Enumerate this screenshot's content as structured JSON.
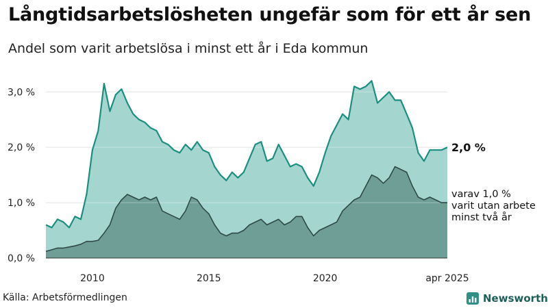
{
  "header": {
    "title": "Långtidsarbetslösheten ungefär som för ett år sen",
    "subtitle": "Andel som varit arbetslösa i minst ett år i Eda kommun"
  },
  "footer": {
    "source": "Källa: Arbetsförmedlingen",
    "brand": "Newsworthy"
  },
  "colors": {
    "total_line": "#1a8f80",
    "total_fill": "#a4d6cf",
    "sub_line": "#2f4a45",
    "sub_fill": "#6e9e96",
    "grid": "#d9d9d9"
  },
  "chart_data": {
    "type": "area",
    "y_tick_labels": [
      "0,0 %",
      "1,0 %",
      "2,0 %",
      "3,0 %"
    ],
    "y_ticks": [
      0,
      1,
      2,
      3
    ],
    "ylim": [
      0,
      3.3
    ],
    "x_tick_labels": [
      "2010",
      "2015",
      "2020",
      "apr 2025"
    ],
    "x_ticks": [
      2010,
      2015,
      2020,
      2025.25
    ],
    "xlim": [
      2008.0,
      2025.25
    ],
    "annotations": {
      "total_value": "2,0 %",
      "sub_lines": [
        "varav 1,0 %",
        "varit utan arbete",
        "minst två år"
      ]
    },
    "series": [
      {
        "name": "Andel som varit arbetslösa i minst ett år",
        "points": [
          [
            2008.0,
            0.6
          ],
          [
            2008.25,
            0.55
          ],
          [
            2008.5,
            0.7
          ],
          [
            2008.75,
            0.65
          ],
          [
            2009.0,
            0.55
          ],
          [
            2009.25,
            0.75
          ],
          [
            2009.5,
            0.7
          ],
          [
            2009.75,
            1.15
          ],
          [
            2010.0,
            1.95
          ],
          [
            2010.25,
            2.3
          ],
          [
            2010.5,
            3.15
          ],
          [
            2010.75,
            2.65
          ],
          [
            2011.0,
            2.95
          ],
          [
            2011.25,
            3.05
          ],
          [
            2011.5,
            2.8
          ],
          [
            2011.75,
            2.6
          ],
          [
            2012.0,
            2.5
          ],
          [
            2012.25,
            2.45
          ],
          [
            2012.5,
            2.35
          ],
          [
            2012.75,
            2.3
          ],
          [
            2013.0,
            2.1
          ],
          [
            2013.25,
            2.05
          ],
          [
            2013.5,
            1.95
          ],
          [
            2013.75,
            1.9
          ],
          [
            2014.0,
            2.05
          ],
          [
            2014.25,
            1.95
          ],
          [
            2014.5,
            2.1
          ],
          [
            2014.75,
            1.95
          ],
          [
            2015.0,
            1.9
          ],
          [
            2015.25,
            1.65
          ],
          [
            2015.5,
            1.5
          ],
          [
            2015.75,
            1.4
          ],
          [
            2016.0,
            1.55
          ],
          [
            2016.25,
            1.45
          ],
          [
            2016.5,
            1.55
          ],
          [
            2016.75,
            1.8
          ],
          [
            2017.0,
            2.05
          ],
          [
            2017.25,
            2.1
          ],
          [
            2017.5,
            1.75
          ],
          [
            2017.75,
            1.8
          ],
          [
            2018.0,
            2.05
          ],
          [
            2018.25,
            1.85
          ],
          [
            2018.5,
            1.65
          ],
          [
            2018.75,
            1.7
          ],
          [
            2019.0,
            1.65
          ],
          [
            2019.25,
            1.45
          ],
          [
            2019.5,
            1.3
          ],
          [
            2019.75,
            1.55
          ],
          [
            2020.0,
            1.9
          ],
          [
            2020.25,
            2.2
          ],
          [
            2020.5,
            2.4
          ],
          [
            2020.75,
            2.6
          ],
          [
            2021.0,
            2.5
          ],
          [
            2021.25,
            3.1
          ],
          [
            2021.5,
            3.05
          ],
          [
            2021.75,
            3.1
          ],
          [
            2022.0,
            3.2
          ],
          [
            2022.25,
            2.8
          ],
          [
            2022.5,
            2.9
          ],
          [
            2022.75,
            3.0
          ],
          [
            2023.0,
            2.85
          ],
          [
            2023.25,
            2.85
          ],
          [
            2023.5,
            2.6
          ],
          [
            2023.75,
            2.35
          ],
          [
            2024.0,
            1.9
          ],
          [
            2024.25,
            1.75
          ],
          [
            2024.5,
            1.95
          ],
          [
            2024.75,
            1.95
          ],
          [
            2025.0,
            1.95
          ],
          [
            2025.25,
            2.0
          ]
        ]
      },
      {
        "name": "varav minst två år",
        "points": [
          [
            2008.0,
            0.12
          ],
          [
            2008.25,
            0.15
          ],
          [
            2008.5,
            0.18
          ],
          [
            2008.75,
            0.18
          ],
          [
            2009.0,
            0.2
          ],
          [
            2009.25,
            0.22
          ],
          [
            2009.5,
            0.25
          ],
          [
            2009.75,
            0.3
          ],
          [
            2010.0,
            0.3
          ],
          [
            2010.25,
            0.32
          ],
          [
            2010.5,
            0.45
          ],
          [
            2010.75,
            0.6
          ],
          [
            2011.0,
            0.9
          ],
          [
            2011.25,
            1.05
          ],
          [
            2011.5,
            1.15
          ],
          [
            2011.75,
            1.1
          ],
          [
            2012.0,
            1.05
          ],
          [
            2012.25,
            1.1
          ],
          [
            2012.5,
            1.05
          ],
          [
            2012.75,
            1.1
          ],
          [
            2013.0,
            0.85
          ],
          [
            2013.25,
            0.8
          ],
          [
            2013.5,
            0.75
          ],
          [
            2013.75,
            0.7
          ],
          [
            2014.0,
            0.85
          ],
          [
            2014.25,
            1.1
          ],
          [
            2014.5,
            1.05
          ],
          [
            2014.75,
            0.9
          ],
          [
            2015.0,
            0.8
          ],
          [
            2015.25,
            0.6
          ],
          [
            2015.5,
            0.45
          ],
          [
            2015.75,
            0.4
          ],
          [
            2016.0,
            0.45
          ],
          [
            2016.25,
            0.45
          ],
          [
            2016.5,
            0.5
          ],
          [
            2016.75,
            0.6
          ],
          [
            2017.0,
            0.65
          ],
          [
            2017.25,
            0.7
          ],
          [
            2017.5,
            0.6
          ],
          [
            2017.75,
            0.65
          ],
          [
            2018.0,
            0.7
          ],
          [
            2018.25,
            0.6
          ],
          [
            2018.5,
            0.65
          ],
          [
            2018.75,
            0.75
          ],
          [
            2019.0,
            0.75
          ],
          [
            2019.25,
            0.55
          ],
          [
            2019.5,
            0.4
          ],
          [
            2019.75,
            0.5
          ],
          [
            2020.0,
            0.55
          ],
          [
            2020.25,
            0.6
          ],
          [
            2020.5,
            0.65
          ],
          [
            2020.75,
            0.85
          ],
          [
            2021.0,
            0.95
          ],
          [
            2021.25,
            1.05
          ],
          [
            2021.5,
            1.1
          ],
          [
            2021.75,
            1.3
          ],
          [
            2022.0,
            1.5
          ],
          [
            2022.25,
            1.45
          ],
          [
            2022.5,
            1.35
          ],
          [
            2022.75,
            1.45
          ],
          [
            2023.0,
            1.65
          ],
          [
            2023.25,
            1.6
          ],
          [
            2023.5,
            1.55
          ],
          [
            2023.75,
            1.3
          ],
          [
            2024.0,
            1.1
          ],
          [
            2024.25,
            1.05
          ],
          [
            2024.5,
            1.1
          ],
          [
            2024.75,
            1.05
          ],
          [
            2025.0,
            1.0
          ],
          [
            2025.25,
            1.0
          ]
        ]
      }
    ]
  }
}
